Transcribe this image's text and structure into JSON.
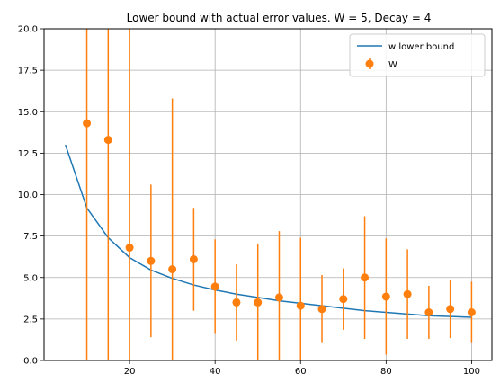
{
  "chart_data": {
    "type": "line",
    "title": "Lower bound with actual error values. W = 5, Decay = 4",
    "xlabel": "",
    "ylabel": "",
    "xlim": [
      0,
      104.75
    ],
    "ylim": [
      0,
      20
    ],
    "xticks": [
      20,
      40,
      60,
      80,
      100
    ],
    "xtick_labels": [
      "20",
      "40",
      "60",
      "80",
      "100"
    ],
    "yticks": [
      0,
      2.5,
      5,
      7.5,
      10,
      12.5,
      15,
      17.5,
      20
    ],
    "ytick_labels": [
      "0.0",
      "2.5",
      "5.0",
      "7.5",
      "10.0",
      "12.5",
      "15.0",
      "17.5",
      "20.0"
    ],
    "grid": true,
    "legend_position": "upper right",
    "series": [
      {
        "name": "w lower bound",
        "kind": "line",
        "color": "#1f77b4",
        "x": [
          5,
          10,
          15,
          20,
          25,
          30,
          35,
          40,
          45,
          50,
          55,
          60,
          65,
          70,
          75,
          80,
          85,
          90,
          95,
          100
        ],
        "y": [
          13.0,
          9.2,
          7.4,
          6.2,
          5.45,
          4.95,
          4.55,
          4.25,
          4.0,
          3.8,
          3.6,
          3.45,
          3.3,
          3.15,
          3.0,
          2.9,
          2.8,
          2.7,
          2.65,
          2.6
        ]
      },
      {
        "name": "W",
        "kind": "errorbar",
        "color": "#ff7f0e",
        "x": [
          10,
          15,
          20,
          25,
          30,
          35,
          40,
          45,
          50,
          55,
          60,
          65,
          70,
          75,
          80,
          85,
          90,
          95,
          100
        ],
        "y": [
          14.3,
          13.3,
          6.8,
          6.0,
          5.5,
          6.1,
          4.45,
          3.5,
          3.5,
          3.8,
          3.3,
          3.1,
          3.7,
          5.0,
          3.85,
          4.0,
          2.9,
          3.1,
          2.9
        ],
        "err": [
          16.0,
          14.0,
          14.0,
          4.6,
          10.3,
          3.1,
          2.85,
          2.3,
          3.55,
          4.0,
          4.1,
          2.05,
          1.85,
          3.7,
          3.5,
          2.7,
          1.6,
          1.75,
          1.85
        ]
      }
    ]
  }
}
